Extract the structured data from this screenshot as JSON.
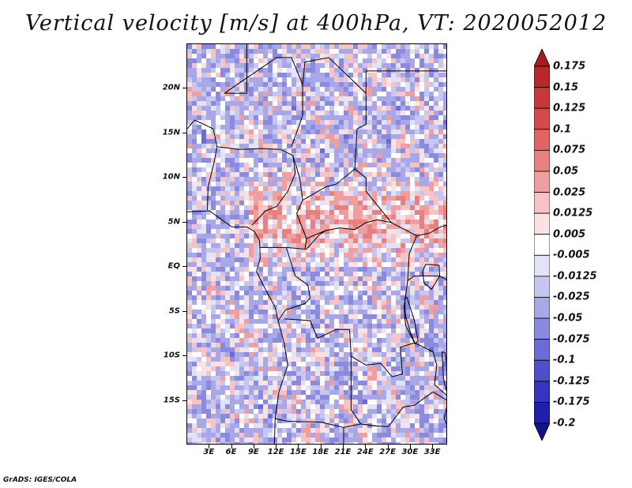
{
  "title": "Vertical velocity [m/s] at 400hPa, VT: 2020052012",
  "credit": "GrADS: IGES/COLA",
  "map": {
    "lat_range": [
      -20,
      25
    ],
    "lon_range": [
      0,
      35
    ],
    "lat_labels": [
      {
        "lat": 20,
        "label": "20N"
      },
      {
        "lat": 15,
        "label": "15N"
      },
      {
        "lat": 10,
        "label": "10N"
      },
      {
        "lat": 5,
        "label": "5N"
      },
      {
        "lat": 0,
        "label": "EQ"
      },
      {
        "lat": -5,
        "label": "5S"
      },
      {
        "lat": -10,
        "label": "10S"
      },
      {
        "lat": -15,
        "label": "15S"
      }
    ],
    "lon_labels": [
      {
        "lon": 3,
        "label": "3E"
      },
      {
        "lon": 6,
        "label": "6E"
      },
      {
        "lon": 9,
        "label": "9E"
      },
      {
        "lon": 12,
        "label": "12E"
      },
      {
        "lon": 15,
        "label": "15E"
      },
      {
        "lon": 18,
        "label": "18E"
      },
      {
        "lon": 21,
        "label": "21E"
      },
      {
        "lon": 24,
        "label": "24E"
      },
      {
        "lon": 27,
        "label": "27E"
      },
      {
        "lon": 30,
        "label": "30E"
      },
      {
        "lon": 33,
        "label": "33E"
      }
    ]
  },
  "colorbar": {
    "labels": [
      "0.175",
      "0.15",
      "0.125",
      "0.1",
      "0.075",
      "0.05",
      "0.025",
      "0.0125",
      "0.005",
      "-0.005",
      "-0.0125",
      "-0.025",
      "-0.05",
      "-0.075",
      "-0.1",
      "-0.125",
      "-0.175",
      "-0.2"
    ],
    "colors": [
      "#a51c1c",
      "#b92828",
      "#c83838",
      "#d64a4a",
      "#e06464",
      "#e88080",
      "#ef9f9f",
      "#f6c4c4",
      "#fbe2e2",
      "#ffffff",
      "#e3e3f8",
      "#c6c6f0",
      "#a8a8e8",
      "#8a8adf",
      "#6c6cd6",
      "#4f4fcc",
      "#3434bf",
      "#1f1fa8",
      "#12128a"
    ]
  }
}
